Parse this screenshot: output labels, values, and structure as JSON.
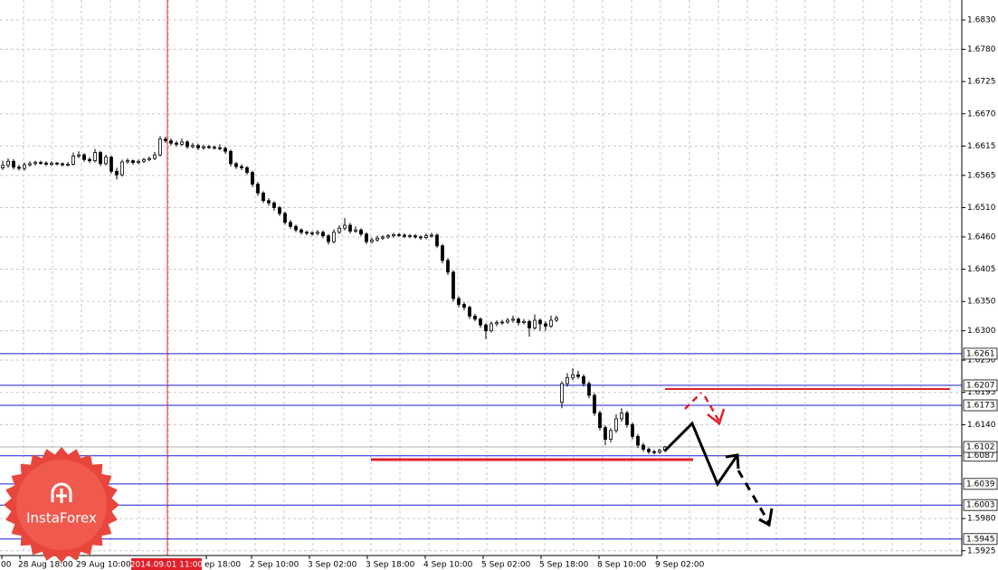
{
  "chart_data": {
    "type": "candlestick",
    "ylim": [
      1.592,
      1.6864
    ],
    "yticks": [
      {
        "value": 1.683,
        "label": "1.6830"
      },
      {
        "value": 1.678,
        "label": "1.6780"
      },
      1.6725,
      {
        "value": 1.667,
        "label": "1.6670"
      },
      1.6615,
      1.6565,
      {
        "value": 1.651,
        "label": "1.6510"
      },
      {
        "value": 1.646,
        "label": "1.6460"
      },
      1.6405,
      {
        "value": 1.635,
        "label": "1.6350"
      },
      {
        "value": 1.63,
        "label": "1.6300"
      },
      {
        "value": 1.625,
        "label": "1.6250"
      },
      1.6195,
      {
        "value": 1.614,
        "label": "1.6140"
      },
      {
        "value": 1.598,
        "label": "1.5980"
      },
      1.5925
    ],
    "grid": true,
    "x_labels": [
      "00",
      "28 Aug 18:00",
      "29 Aug 10:00",
      "ep 18:00",
      "2 Sep 10:00",
      "3 Sep 02:00",
      "3 Sep 18:00",
      "4 Sep 10:00",
      "5 Sep 02:00",
      "5 Sep 18:00",
      "8 Sep 10:00",
      "9 Sep 02:00"
    ],
    "cursor_label": "2014.09.01 11:00",
    "levels": [
      1.6261,
      1.6207,
      1.6173,
      1.6087,
      1.6039,
      1.6003,
      1.5945
    ],
    "level_color": "#1c1cd8",
    "current_price": 1.6102,
    "logo": "InstaForex",
    "candles": [
      [
        1.6578,
        1.659,
        1.6574,
        1.6582
      ],
      [
        1.6582,
        1.6594,
        1.6578,
        1.6589
      ],
      [
        1.6589,
        1.6593,
        1.6575,
        1.6579
      ],
      [
        1.6579,
        1.6583,
        1.6573,
        1.6577
      ],
      [
        1.6577,
        1.6587,
        1.6573,
        1.6583
      ],
      [
        1.6583,
        1.6589,
        1.658,
        1.6585
      ],
      [
        1.6585,
        1.659,
        1.6582,
        1.6587
      ],
      [
        1.6587,
        1.659,
        1.6583,
        1.6586
      ],
      [
        1.6586,
        1.6589,
        1.6581,
        1.6584
      ],
      [
        1.6584,
        1.6589,
        1.6581,
        1.6586
      ],
      [
        1.6586,
        1.6588,
        1.6582,
        1.6585
      ],
      [
        1.6585,
        1.6587,
        1.658,
        1.6583
      ],
      [
        1.6583,
        1.6588,
        1.658,
        1.6584
      ],
      [
        1.6584,
        1.6604,
        1.6582,
        1.6598
      ],
      [
        1.6598,
        1.6606,
        1.6594,
        1.66
      ],
      [
        1.66,
        1.6603,
        1.6588,
        1.6592
      ],
      [
        1.6592,
        1.6596,
        1.6586,
        1.659
      ],
      [
        1.659,
        1.661,
        1.6587,
        1.6604
      ],
      [
        1.6604,
        1.6607,
        1.6581,
        1.6585
      ],
      [
        1.6585,
        1.66,
        1.6582,
        1.6596
      ],
      [
        1.6596,
        1.6599,
        1.6568,
        1.6572
      ],
      [
        1.6572,
        1.6578,
        1.6558,
        1.6566
      ],
      [
        1.6566,
        1.6592,
        1.6563,
        1.6588
      ],
      [
        1.6588,
        1.6594,
        1.6585,
        1.659
      ],
      [
        1.659,
        1.6592,
        1.6583,
        1.6587
      ],
      [
        1.6587,
        1.6592,
        1.6584,
        1.6589
      ],
      [
        1.6589,
        1.6595,
        1.6586,
        1.6592
      ],
      [
        1.6592,
        1.6597,
        1.6589,
        1.6594
      ],
      [
        1.6594,
        1.6605,
        1.6591,
        1.66
      ],
      [
        1.66,
        1.6632,
        1.6597,
        1.6627
      ],
      [
        1.6627,
        1.6631,
        1.662,
        1.6624
      ],
      [
        1.6624,
        1.6628,
        1.6616,
        1.662
      ],
      [
        1.662,
        1.6624,
        1.6614,
        1.6618
      ],
      [
        1.6618,
        1.6628,
        1.6615,
        1.6622
      ],
      [
        1.6622,
        1.6625,
        1.661,
        1.6614
      ],
      [
        1.6614,
        1.662,
        1.6611,
        1.6616
      ],
      [
        1.6616,
        1.6619,
        1.6608,
        1.6612
      ],
      [
        1.6612,
        1.6617,
        1.6609,
        1.6614
      ],
      [
        1.6614,
        1.6617,
        1.661,
        1.6613
      ],
      [
        1.6613,
        1.6616,
        1.6609,
        1.6612
      ],
      [
        1.6612,
        1.6618,
        1.6608,
        1.6611
      ],
      [
        1.6611,
        1.6614,
        1.6602,
        1.6606
      ],
      [
        1.6606,
        1.6609,
        1.658,
        1.6585
      ],
      [
        1.6585,
        1.6588,
        1.6576,
        1.658
      ],
      [
        1.658,
        1.6584,
        1.6574,
        1.6578
      ],
      [
        1.6578,
        1.6581,
        1.6566,
        1.657
      ],
      [
        1.657,
        1.6573,
        1.6545,
        1.655
      ],
      [
        1.655,
        1.6554,
        1.653,
        1.6535
      ],
      [
        1.6535,
        1.6538,
        1.6518,
        1.6522
      ],
      [
        1.6522,
        1.6526,
        1.6513,
        1.6518
      ],
      [
        1.6518,
        1.6521,
        1.6505,
        1.651
      ],
      [
        1.651,
        1.6513,
        1.6496,
        1.65
      ],
      [
        1.65,
        1.6503,
        1.6481,
        1.6485
      ],
      [
        1.6485,
        1.6489,
        1.6474,
        1.6478
      ],
      [
        1.6478,
        1.6481,
        1.6468,
        1.6472
      ],
      [
        1.6472,
        1.6475,
        1.6464,
        1.6468
      ],
      [
        1.6468,
        1.6471,
        1.6463,
        1.6467
      ],
      [
        1.6467,
        1.647,
        1.6462,
        1.6466
      ],
      [
        1.6466,
        1.6472,
        1.6463,
        1.6468
      ],
      [
        1.6468,
        1.6471,
        1.6458,
        1.6462
      ],
      [
        1.6462,
        1.6465,
        1.6447,
        1.6452
      ],
      [
        1.6452,
        1.6473,
        1.6449,
        1.6468
      ],
      [
        1.6468,
        1.648,
        1.6465,
        1.6475
      ],
      [
        1.6475,
        1.6492,
        1.6471,
        1.648
      ],
      [
        1.648,
        1.6484,
        1.6466,
        1.647
      ],
      [
        1.647,
        1.6478,
        1.6467,
        1.6472
      ],
      [
        1.6472,
        1.6475,
        1.6461,
        1.6465
      ],
      [
        1.6465,
        1.6468,
        1.6448,
        1.6452
      ],
      [
        1.6452,
        1.6459,
        1.6449,
        1.6455
      ],
      [
        1.6455,
        1.6462,
        1.6452,
        1.6458
      ],
      [
        1.6458,
        1.6463,
        1.6455,
        1.646
      ],
      [
        1.646,
        1.6465,
        1.6457,
        1.6462
      ],
      [
        1.6462,
        1.6467,
        1.6459,
        1.6464
      ],
      [
        1.6464,
        1.6467,
        1.646,
        1.6463
      ],
      [
        1.6463,
        1.6466,
        1.6458,
        1.6461
      ],
      [
        1.6461,
        1.6465,
        1.6458,
        1.6462
      ],
      [
        1.6462,
        1.6465,
        1.6457,
        1.646
      ],
      [
        1.646,
        1.6463,
        1.6455,
        1.6459
      ],
      [
        1.6459,
        1.6466,
        1.6456,
        1.6462
      ],
      [
        1.6462,
        1.6467,
        1.6459,
        1.6463
      ],
      [
        1.6463,
        1.6466,
        1.6441,
        1.6445
      ],
      [
        1.6445,
        1.6448,
        1.6415,
        1.642
      ],
      [
        1.642,
        1.6424,
        1.6395,
        1.64
      ],
      [
        1.64,
        1.6403,
        1.635,
        1.6355
      ],
      [
        1.6355,
        1.6359,
        1.634,
        1.6345
      ],
      [
        1.6345,
        1.6349,
        1.6335,
        1.634
      ],
      [
        1.634,
        1.6343,
        1.632,
        1.6325
      ],
      [
        1.6325,
        1.6329,
        1.6316,
        1.632
      ],
      [
        1.632,
        1.6323,
        1.6305,
        1.631
      ],
      [
        1.631,
        1.6313,
        1.6286,
        1.63
      ],
      [
        1.63,
        1.6316,
        1.6297,
        1.6312
      ],
      [
        1.6312,
        1.6318,
        1.6308,
        1.6314
      ],
      [
        1.6314,
        1.6319,
        1.631,
        1.6315
      ],
      [
        1.6315,
        1.6322,
        1.6312,
        1.6318
      ],
      [
        1.6318,
        1.6326,
        1.6314,
        1.632
      ],
      [
        1.632,
        1.6323,
        1.6309,
        1.6314
      ],
      [
        1.6314,
        1.632,
        1.6311,
        1.6316
      ],
      [
        1.6316,
        1.6319,
        1.629,
        1.6305
      ],
      [
        1.6305,
        1.6328,
        1.6302,
        1.6318
      ],
      [
        1.6318,
        1.6321,
        1.63,
        1.6312
      ],
      [
        1.6312,
        1.6316,
        1.63,
        1.6308
      ],
      [
        1.6308,
        1.6326,
        1.6305,
        1.6318
      ],
      [
        1.6318,
        1.6326,
        1.6315,
        1.6322
      ],
      [
        1.6178,
        1.6214,
        1.6168,
        1.621
      ],
      [
        1.621,
        1.6228,
        1.6205,
        1.622
      ],
      [
        1.622,
        1.6236,
        1.6216,
        1.6225
      ],
      [
        1.6225,
        1.6232,
        1.6218,
        1.6222
      ],
      [
        1.6222,
        1.6226,
        1.6205,
        1.621
      ],
      [
        1.621,
        1.6214,
        1.6185,
        1.619
      ],
      [
        1.619,
        1.6194,
        1.6155,
        1.616
      ],
      [
        1.616,
        1.6164,
        1.613,
        1.6135
      ],
      [
        1.6135,
        1.6139,
        1.6105,
        1.6115
      ],
      [
        1.6115,
        1.6134,
        1.611,
        1.613
      ],
      [
        1.613,
        1.6158,
        1.6126,
        1.615
      ],
      [
        1.615,
        1.6168,
        1.6145,
        1.616
      ],
      [
        1.616,
        1.6164,
        1.6135,
        1.614
      ],
      [
        1.614,
        1.6144,
        1.6115,
        1.612
      ],
      [
        1.612,
        1.6124,
        1.61,
        1.6105
      ],
      [
        1.6105,
        1.6109,
        1.6094,
        1.6098
      ],
      [
        1.6098,
        1.6101,
        1.609,
        1.6094
      ],
      [
        1.6094,
        1.6097,
        1.6089,
        1.6093
      ],
      [
        1.6093,
        1.6099,
        1.609,
        1.6096
      ],
      [
        1.6096,
        1.6104,
        1.6093,
        1.6102
      ]
    ]
  }
}
